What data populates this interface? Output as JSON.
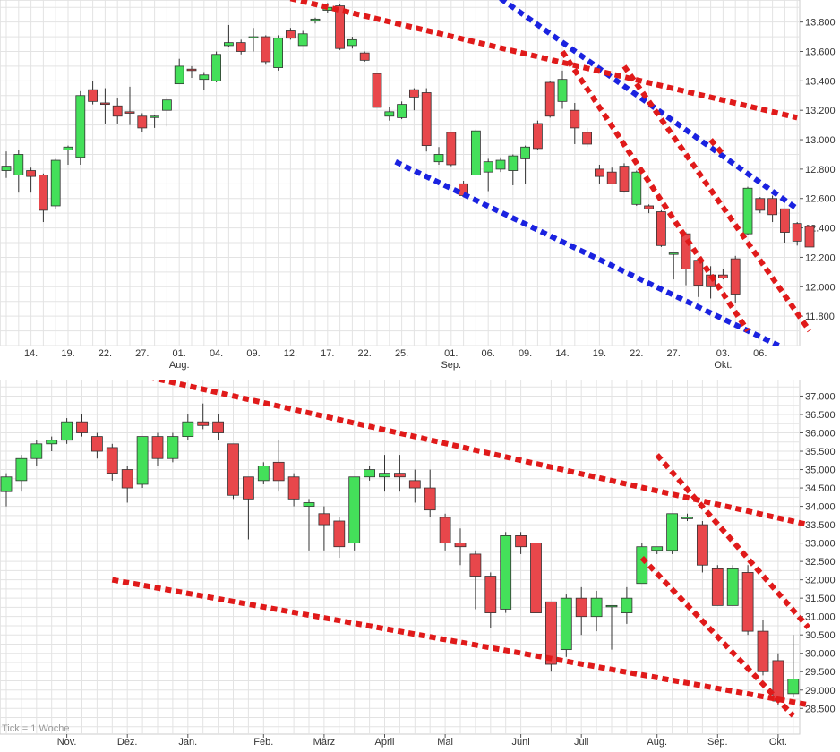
{
  "chart_data": [
    {
      "type": "candlestick",
      "title": "",
      "period": "daily",
      "ylim": [
        11600,
        13950
      ],
      "y_ticks": [
        "11.800",
        "12.000",
        "12.200",
        "12.400",
        "12.600",
        "12.800",
        "13.000",
        "13.200",
        "13.400",
        "13.600",
        "13.800"
      ],
      "y_tick_values": [
        11800,
        12000,
        12200,
        12400,
        12600,
        12800,
        13000,
        13200,
        13400,
        13600,
        13800
      ],
      "grid": true,
      "colors": {
        "up": "#44e05a",
        "down": "#e8474b",
        "wick": "#333333",
        "blue_trend": "#1a22e0",
        "red_trend": "#e01a1a"
      },
      "x_ticks": [
        {
          "label": "14.",
          "index": 2
        },
        {
          "label": "19.",
          "index": 5
        },
        {
          "label": "22.",
          "index": 8
        },
        {
          "label": "27.",
          "index": 11
        },
        {
          "label": "01.",
          "index": 14,
          "sub": "Aug."
        },
        {
          "label": "04.",
          "index": 17
        },
        {
          "label": "09.",
          "index": 20
        },
        {
          "label": "12.",
          "index": 23
        },
        {
          "label": "17.",
          "index": 26
        },
        {
          "label": "22.",
          "index": 29
        },
        {
          "label": "25.",
          "index": 32
        },
        {
          "label": "01.",
          "index": 36,
          "sub": "Sep."
        },
        {
          "label": "06.",
          "index": 39
        },
        {
          "label": "09.",
          "index": 42
        },
        {
          "label": "14.",
          "index": 45
        },
        {
          "label": "19.",
          "index": 48
        },
        {
          "label": "22.",
          "index": 51
        },
        {
          "label": "27.",
          "index": 54
        },
        {
          "label": "03.",
          "index": 58,
          "sub": "Okt."
        },
        {
          "label": "06.",
          "index": 61
        }
      ],
      "candles": [
        [
          12790,
          12820,
          12740,
          12920
        ],
        [
          12760,
          12900,
          12640,
          12930
        ],
        [
          12790,
          12750,
          12640,
          12810
        ],
        [
          12760,
          12520,
          12440,
          12770
        ],
        [
          12550,
          12860,
          12530,
          12870
        ],
        [
          12930,
          12950,
          12830,
          12960
        ],
        [
          12880,
          13300,
          12830,
          13330
        ],
        [
          13340,
          13260,
          13240,
          13400
        ],
        [
          13250,
          13240,
          13110,
          13350
        ],
        [
          13230,
          13160,
          13110,
          13280
        ],
        [
          13190,
          13180,
          13100,
          13360
        ],
        [
          13160,
          13080,
          13050,
          13180
        ],
        [
          13160,
          13160,
          13080,
          13170
        ],
        [
          13200,
          13270,
          13090,
          13290
        ],
        [
          13380,
          13500,
          13380,
          13550
        ],
        [
          13480,
          13470,
          13420,
          13500
        ],
        [
          13410,
          13440,
          13340,
          13460
        ],
        [
          13400,
          13580,
          13390,
          13600
        ],
        [
          13640,
          13660,
          13630,
          13780
        ],
        [
          13660,
          13600,
          13580,
          13680
        ],
        [
          13700,
          13700,
          13600,
          13760
        ],
        [
          13700,
          13530,
          13510,
          13710
        ],
        [
          13490,
          13690,
          13470,
          13710
        ],
        [
          13740,
          13690,
          13680,
          13760
        ],
        [
          13640,
          13720,
          13640,
          13740
        ],
        [
          13810,
          13820,
          13790,
          13830
        ],
        [
          13880,
          13900,
          13860,
          13930
        ],
        [
          13910,
          13620,
          13610,
          13920
        ],
        [
          13640,
          13680,
          13620,
          13700
        ],
        [
          13590,
          13540,
          13530,
          13600
        ],
        [
          13450,
          13220,
          13220,
          13450
        ],
        [
          13160,
          13190,
          13130,
          13220
        ],
        [
          13150,
          13240,
          13140,
          13260
        ],
        [
          13340,
          13290,
          13200,
          13350
        ],
        [
          13320,
          12960,
          12920,
          13350
        ],
        [
          12850,
          12900,
          12830,
          12950
        ],
        [
          13050,
          12830,
          12820,
          13040
        ],
        [
          12700,
          12620,
          12620,
          12720
        ],
        [
          12760,
          13060,
          12760,
          13070
        ],
        [
          12780,
          12850,
          12650,
          12870
        ],
        [
          12800,
          12860,
          12780,
          12880
        ],
        [
          12790,
          12890,
          12690,
          12900
        ],
        [
          12870,
          12950,
          12700,
          12960
        ],
        [
          13110,
          12940,
          12930,
          13130
        ],
        [
          13390,
          13160,
          13150,
          13400
        ],
        [
          13260,
          13410,
          13210,
          13470
        ],
        [
          13200,
          13080,
          12970,
          13250
        ],
        [
          13050,
          12970,
          12950,
          13080
        ],
        [
          12800,
          12750,
          12700,
          12830
        ],
        [
          12780,
          12700,
          12700,
          12810
        ],
        [
          12820,
          12650,
          12640,
          12840
        ],
        [
          12560,
          12780,
          12550,
          12790
        ],
        [
          12550,
          12530,
          12500,
          12560
        ],
        [
          12510,
          12280,
          12270,
          12520
        ],
        [
          12220,
          12230,
          12050,
          12230
        ],
        [
          12360,
          12120,
          12010,
          12370
        ],
        [
          12180,
          12010,
          11930,
          12190
        ],
        [
          12080,
          12000,
          11920,
          12140
        ],
        [
          12080,
          12060,
          12050,
          12120
        ],
        [
          12190,
          11950,
          11890,
          12210
        ],
        [
          12360,
          12670,
          12350,
          12680
        ],
        [
          12600,
          12520,
          12500,
          12610
        ],
        [
          12600,
          12490,
          12440,
          12620
        ],
        [
          12530,
          12370,
          12300,
          12530
        ],
        [
          12430,
          12310,
          12280,
          12440
        ],
        [
          12410,
          12270,
          12270,
          12420
        ]
      ],
      "trendlines": [
        {
          "color": "blue",
          "points": [
            [
              31.5,
              12850
            ],
            [
              62.5,
              11600
            ]
          ]
        },
        {
          "color": "blue",
          "points": [
            [
              40,
              13960
            ],
            [
              64,
              12530
            ]
          ]
        },
        {
          "color": "red",
          "points": [
            [
              23,
              13960
            ],
            [
              64,
              13150
            ]
          ]
        },
        {
          "color": "red",
          "points": [
            [
              45,
              13600
            ],
            [
              60,
              11700
            ]
          ]
        },
        {
          "color": "red",
          "points": [
            [
              50,
              13500
            ],
            [
              65,
              11700
            ]
          ]
        },
        {
          "color": "red",
          "points": [
            [
              57,
              13000
            ],
            [
              58,
              12900
            ]
          ]
        }
      ]
    },
    {
      "type": "candlestick",
      "title": "",
      "period": "weekly",
      "ylim": [
        27800,
        37450
      ],
      "y_ticks": [
        "28.500",
        "29.000",
        "29.500",
        "30.000",
        "30.500",
        "31.000",
        "31.500",
        "32.000",
        "32.500",
        "33.000",
        "33.500",
        "34.000",
        "34.500",
        "35.000",
        "35.500",
        "36.000",
        "36.500",
        "37.000"
      ],
      "y_tick_values": [
        28500,
        29000,
        29500,
        30000,
        30500,
        31000,
        31500,
        32000,
        32500,
        33000,
        33500,
        34000,
        34500,
        35000,
        35500,
        36000,
        36500,
        37000
      ],
      "grid": true,
      "colors": {
        "up": "#44e05a",
        "down": "#e8474b",
        "wick": "#333333",
        "red_trend": "#e01a1a"
      },
      "x_ticks": [
        {
          "label": "Nov.",
          "index": 4
        },
        {
          "label": "Dez.",
          "index": 8
        },
        {
          "label": "Jan.",
          "index": 12
        },
        {
          "label": "Feb.",
          "index": 17
        },
        {
          "label": "März",
          "index": 21
        },
        {
          "label": "April",
          "index": 25
        },
        {
          "label": "Mai",
          "index": 29
        },
        {
          "label": "Juni",
          "index": 34
        },
        {
          "label": "Juli",
          "index": 38
        },
        {
          "label": "Aug.",
          "index": 43
        },
        {
          "label": "Sep.",
          "index": 47
        },
        {
          "label": "Okt.",
          "index": 51
        }
      ],
      "footnote": "Tick = 1 Woche",
      "candles": [
        [
          34400,
          34800,
          34000,
          34900
        ],
        [
          34700,
          35300,
          34400,
          35400
        ],
        [
          35300,
          35700,
          35100,
          35800
        ],
        [
          35700,
          35800,
          35500,
          35900
        ],
        [
          35800,
          36300,
          35700,
          36400
        ],
        [
          36300,
          36000,
          35900,
          36500
        ],
        [
          35900,
          35500,
          35300,
          36000
        ],
        [
          35600,
          34900,
          34700,
          35700
        ],
        [
          35000,
          34500,
          34100,
          35100
        ],
        [
          34600,
          35900,
          34500,
          35900
        ],
        [
          35900,
          35300,
          35100,
          36000
        ],
        [
          35300,
          35900,
          35200,
          36000
        ],
        [
          35900,
          36300,
          35800,
          36500
        ],
        [
          36300,
          36200,
          36100,
          36800
        ],
        [
          36300,
          36000,
          35800,
          36500
        ],
        [
          35700,
          34300,
          34200,
          35700
        ],
        [
          34800,
          34200,
          33100,
          34800
        ],
        [
          34700,
          35100,
          34600,
          35200
        ],
        [
          35200,
          34700,
          34400,
          35800
        ],
        [
          34800,
          34200,
          34000,
          34900
        ],
        [
          34000,
          34100,
          32800,
          34200
        ],
        [
          33800,
          33500,
          32800,
          34000
        ],
        [
          33600,
          32900,
          32600,
          33700
        ],
        [
          33000,
          34800,
          32800,
          34800
        ],
        [
          34800,
          35000,
          34700,
          35100
        ],
        [
          34800,
          34900,
          34400,
          35400
        ],
        [
          34900,
          34800,
          34400,
          35400
        ],
        [
          34700,
          34500,
          34100,
          35000
        ],
        [
          34500,
          33900,
          33700,
          35000
        ],
        [
          33700,
          33000,
          32800,
          33800
        ],
        [
          33000,
          32900,
          32400,
          33400
        ],
        [
          32700,
          32100,
          31200,
          32800
        ],
        [
          32100,
          31100,
          30700,
          32200
        ],
        [
          31200,
          33200,
          31100,
          33300
        ],
        [
          33200,
          32900,
          32700,
          33300
        ],
        [
          33000,
          31100,
          31100,
          33200
        ],
        [
          31400,
          29700,
          29500,
          31400
        ],
        [
          30100,
          31500,
          29900,
          31600
        ],
        [
          31500,
          31000,
          30500,
          31800
        ],
        [
          31000,
          31500,
          30600,
          31700
        ],
        [
          31300,
          31300,
          30100,
          31300
        ],
        [
          31100,
          31500,
          30800,
          31800
        ],
        [
          31900,
          32900,
          31900,
          33000
        ],
        [
          32800,
          32900,
          32700,
          32900
        ],
        [
          32800,
          33800,
          32700,
          33800
        ],
        [
          33700,
          33700,
          33600,
          33800
        ],
        [
          33500,
          32400,
          32200,
          33600
        ],
        [
          32300,
          31300,
          31300,
          32400
        ],
        [
          31300,
          32300,
          31300,
          32400
        ],
        [
          32200,
          30600,
          30500,
          32400
        ],
        [
          30600,
          29500,
          29400,
          30900
        ],
        [
          29800,
          28700,
          28600,
          30000
        ],
        [
          28900,
          29300,
          28800,
          30500
        ]
      ],
      "trendlines": [
        {
          "color": "red",
          "points": [
            [
              8,
              37650
            ],
            [
              53,
              33500
            ]
          ]
        },
        {
          "color": "red",
          "points": [
            [
              7,
              32000
            ],
            [
              53,
              28600
            ]
          ]
        },
        {
          "color": "red",
          "points": [
            [
              43,
              35400
            ],
            [
              53,
              30700
            ]
          ]
        },
        {
          "color": "red",
          "points": [
            [
              42,
              32600
            ],
            [
              52,
              28300
            ]
          ]
        }
      ]
    }
  ]
}
